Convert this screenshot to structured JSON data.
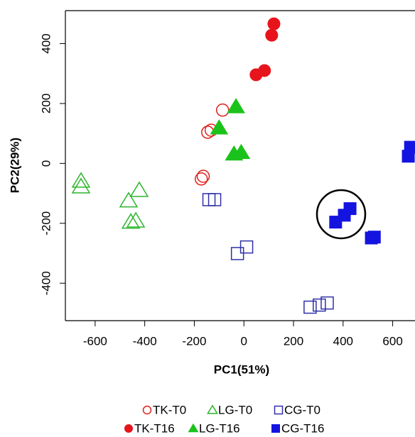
{
  "chart_data": {
    "type": "scatter",
    "x_label": "PC1(51%)",
    "y_label": "PC2(29%)",
    "xlim": [
      -720,
      690
    ],
    "ylim": [
      -525,
      510
    ],
    "xticks": [
      -600,
      -400,
      -200,
      0,
      200,
      400,
      600
    ],
    "yticks": [
      -400,
      -200,
      0,
      200,
      400
    ],
    "series": [
      {
        "name": "TK-T0",
        "color": "#e0201c",
        "marker": "circle",
        "filled": false,
        "x": [
          -86,
          -146,
          -132,
          -172,
          -164
        ],
        "y": [
          178,
          104,
          111,
          -52,
          -43
        ]
      },
      {
        "name": "LG-T0",
        "color": "#2cb52c",
        "marker": "triangle",
        "filled": false,
        "x": [
          -657,
          -657,
          -422,
          -465,
          -456,
          -436
        ],
        "y": [
          -59,
          -78,
          -90,
          -125,
          -196,
          -192
        ]
      },
      {
        "name": "CG-T0",
        "color": "#3030a8",
        "marker": "square",
        "filled": false,
        "x": [
          -141,
          -118,
          -26,
          11,
          267,
          304,
          336
        ],
        "y": [
          -121,
          -121,
          -301,
          -279,
          -480,
          -473,
          -466
        ]
      },
      {
        "name": "TK-T16",
        "color": "#e8141c",
        "marker": "circle",
        "filled": true,
        "x": [
          121,
          112,
          49,
          83
        ],
        "y": [
          466,
          428,
          296,
          310
        ]
      },
      {
        "name": "LG-T16",
        "color": "#1cc21c",
        "marker": "triangle",
        "filled": true,
        "x": [
          -32,
          -100,
          -40,
          -11
        ],
        "y": [
          189,
          118,
          31,
          36
        ]
      },
      {
        "name": "CG-T16",
        "color": "#1414e0",
        "marker": "square",
        "filled": true,
        "x": [
          370,
          405,
          428,
          514,
          526,
          672,
          663
        ],
        "y": [
          -196,
          -173,
          -151,
          -249,
          -246,
          54,
          24
        ]
      }
    ]
  }
}
